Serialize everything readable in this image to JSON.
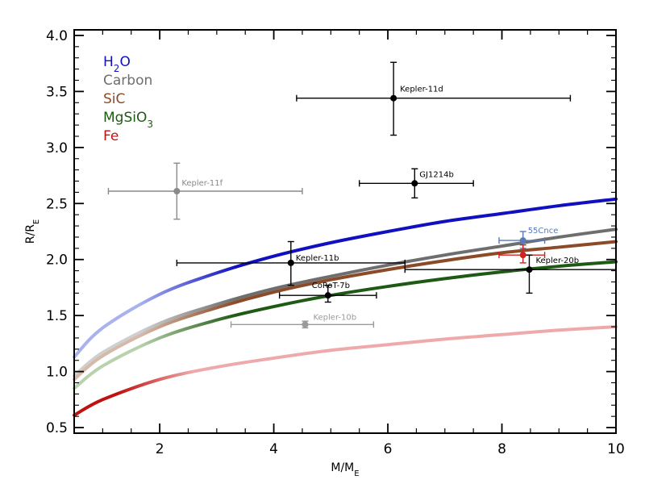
{
  "chart_data": {
    "type": "scatter",
    "xlabel": "M/M",
    "xlabel_sub": "E",
    "ylabel": "R/R",
    "ylabel_sub": "E",
    "xlim": [
      0.5,
      10
    ],
    "ylim": [
      0.45,
      4.05
    ],
    "x_ticks": [
      2,
      4,
      6,
      8,
      10
    ],
    "y_ticks": [
      0.5,
      1.0,
      1.5,
      2.0,
      2.5,
      3.0,
      3.5,
      4.0
    ],
    "y_tick_labels": [
      "0.5",
      "1.0",
      "1.5",
      "2.0",
      "2.5",
      "3.0",
      "3.5",
      "4.0"
    ],
    "x_tick_labels": [
      "2",
      "4",
      "6",
      "8",
      "10"
    ],
    "grid": false,
    "legend_position": "top-left",
    "series": [
      {
        "name": "H2O",
        "label_main": "H",
        "label_sub": "2",
        "label_tail": "O",
        "color": "#1010c0",
        "faded_color": "#a8b2ee",
        "x": [
          0.5,
          1,
          2,
          3,
          4,
          5,
          6,
          7,
          8,
          9,
          10
        ],
        "y": [
          1.13,
          1.39,
          1.69,
          1.88,
          2.03,
          2.15,
          2.25,
          2.34,
          2.41,
          2.48,
          2.54
        ]
      },
      {
        "name": "Carbon",
        "label_main": "Carbon",
        "label_sub": "",
        "label_tail": "",
        "color": "#6e6e6e",
        "faded_color": "#cfcfcf",
        "x": [
          0.5,
          1,
          2,
          3,
          4,
          5,
          6,
          7,
          8,
          9,
          10
        ],
        "y": [
          0.96,
          1.17,
          1.43,
          1.6,
          1.74,
          1.85,
          1.95,
          2.04,
          2.12,
          2.2,
          2.27
        ]
      },
      {
        "name": "SiC",
        "label_main": "SiC",
        "label_sub": "",
        "label_tail": "",
        "color": "#8b4a28",
        "faded_color": "#d8b9a8",
        "x": [
          0.5,
          1,
          2,
          3,
          4,
          5,
          6,
          7,
          8,
          9,
          10
        ],
        "y": [
          0.93,
          1.14,
          1.4,
          1.57,
          1.71,
          1.82,
          1.91,
          1.99,
          2.06,
          2.11,
          2.16
        ]
      },
      {
        "name": "MgSiO3",
        "label_main": "MgSiO",
        "label_sub": "3",
        "label_tail": "",
        "color": "#1f5a14",
        "faded_color": "#b7d2ad",
        "x": [
          0.5,
          1,
          2,
          3,
          4,
          5,
          6,
          7,
          8,
          9,
          10
        ],
        "y": [
          0.85,
          1.05,
          1.3,
          1.46,
          1.58,
          1.68,
          1.76,
          1.83,
          1.89,
          1.94,
          1.98
        ]
      },
      {
        "name": "Fe",
        "label_main": "Fe",
        "label_sub": "",
        "label_tail": "",
        "color": "#c01010",
        "faded_color": "#eeaaaa",
        "x": [
          0.5,
          1,
          2,
          3,
          4,
          5,
          6,
          7,
          8,
          9,
          10
        ],
        "y": [
          0.61,
          0.75,
          0.93,
          1.04,
          1.12,
          1.19,
          1.24,
          1.29,
          1.33,
          1.37,
          1.4
        ]
      }
    ],
    "points": [
      {
        "label": "Kepler-11d",
        "x": 6.1,
        "y": 3.44,
        "xerr": [
          4.4,
          9.2
        ],
        "yerr": [
          3.11,
          3.76
        ],
        "color": "#000000",
        "label_dx": 8,
        "label_dy": -8
      },
      {
        "label": "GJ1214b",
        "x": 6.47,
        "y": 2.68,
        "xerr": [
          5.5,
          7.5
        ],
        "yerr": [
          2.55,
          2.81
        ],
        "color": "#000000",
        "label_dx": 6,
        "label_dy": -8
      },
      {
        "label": "Kepler-11f",
        "x": 2.3,
        "y": 2.61,
        "xerr": [
          1.1,
          4.5
        ],
        "yerr": [
          2.36,
          2.86
        ],
        "color": "#8a8a8a",
        "label_dx": 6,
        "label_dy": -7
      },
      {
        "label": "Kepler-11b",
        "x": 4.3,
        "y": 1.97,
        "xerr": [
          2.3,
          6.3
        ],
        "yerr": [
          1.77,
          2.16
        ],
        "color": "#000000",
        "label_dx": 6,
        "label_dy": -3
      },
      {
        "label": "CoRoT-7b",
        "x": 4.95,
        "y": 1.68,
        "xerr": [
          4.1,
          5.8
        ],
        "yerr": [
          1.62,
          1.77
        ],
        "color": "#000000",
        "label_dx": -20,
        "label_dy": -9
      },
      {
        "label": "Kepler-10b",
        "x": 4.55,
        "y": 1.42,
        "xerr": [
          3.25,
          5.75
        ],
        "yerr": [
          1.39,
          1.45
        ],
        "color": "#9a9a9a",
        "label_dx": 10,
        "label_dy": -6
      },
      {
        "label": "55Cnce",
        "x": 8.37,
        "y": 2.17,
        "xerr": [
          7.95,
          8.75
        ],
        "yerr": [
          2.1,
          2.25
        ],
        "color": "#5a7ab8",
        "label_dx": 6,
        "label_dy": -9
      },
      {
        "label": "",
        "x": 8.37,
        "y": 2.04,
        "xerr": [
          7.95,
          8.75
        ],
        "yerr": [
          1.97,
          2.13
        ],
        "color": "#d42020",
        "label_dx": 0,
        "label_dy": 0
      },
      {
        "label": "Kepler-20b",
        "x": 8.48,
        "y": 1.91,
        "xerr": [
          6.3,
          10.0
        ],
        "yerr": [
          1.7,
          2.04
        ],
        "color": "#000000",
        "label_dx": 8,
        "label_dy": -8
      }
    ]
  }
}
